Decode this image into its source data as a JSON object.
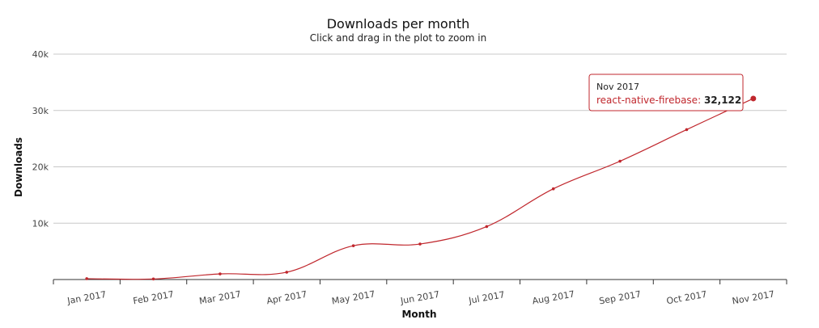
{
  "chart_data": {
    "type": "line",
    "title": "Downloads per month",
    "subtitle": "Click and drag in the plot to zoom in",
    "xlabel": "Month",
    "ylabel": "Downloads",
    "ylim": [
      0,
      40000
    ],
    "yticks": [
      "0",
      "10k",
      "20k",
      "30k",
      "40k"
    ],
    "categories": [
      "Jan 2017",
      "Feb 2017",
      "Mar 2017",
      "Apr 2017",
      "May 2017",
      "Jun 2017",
      "Jul 2017",
      "Aug 2017",
      "Sep 2017",
      "Oct 2017",
      "Nov 2017"
    ],
    "series": [
      {
        "name": "react-native-firebase",
        "color": "#c0272d",
        "values": [
          150,
          100,
          1000,
          1300,
          6000,
          6300,
          9400,
          16100,
          21000,
          26600,
          32122
        ]
      }
    ],
    "grid": true,
    "tooltip": {
      "date": "Nov 2017",
      "series": "react-native-firebase: ",
      "value": "32,122"
    }
  }
}
